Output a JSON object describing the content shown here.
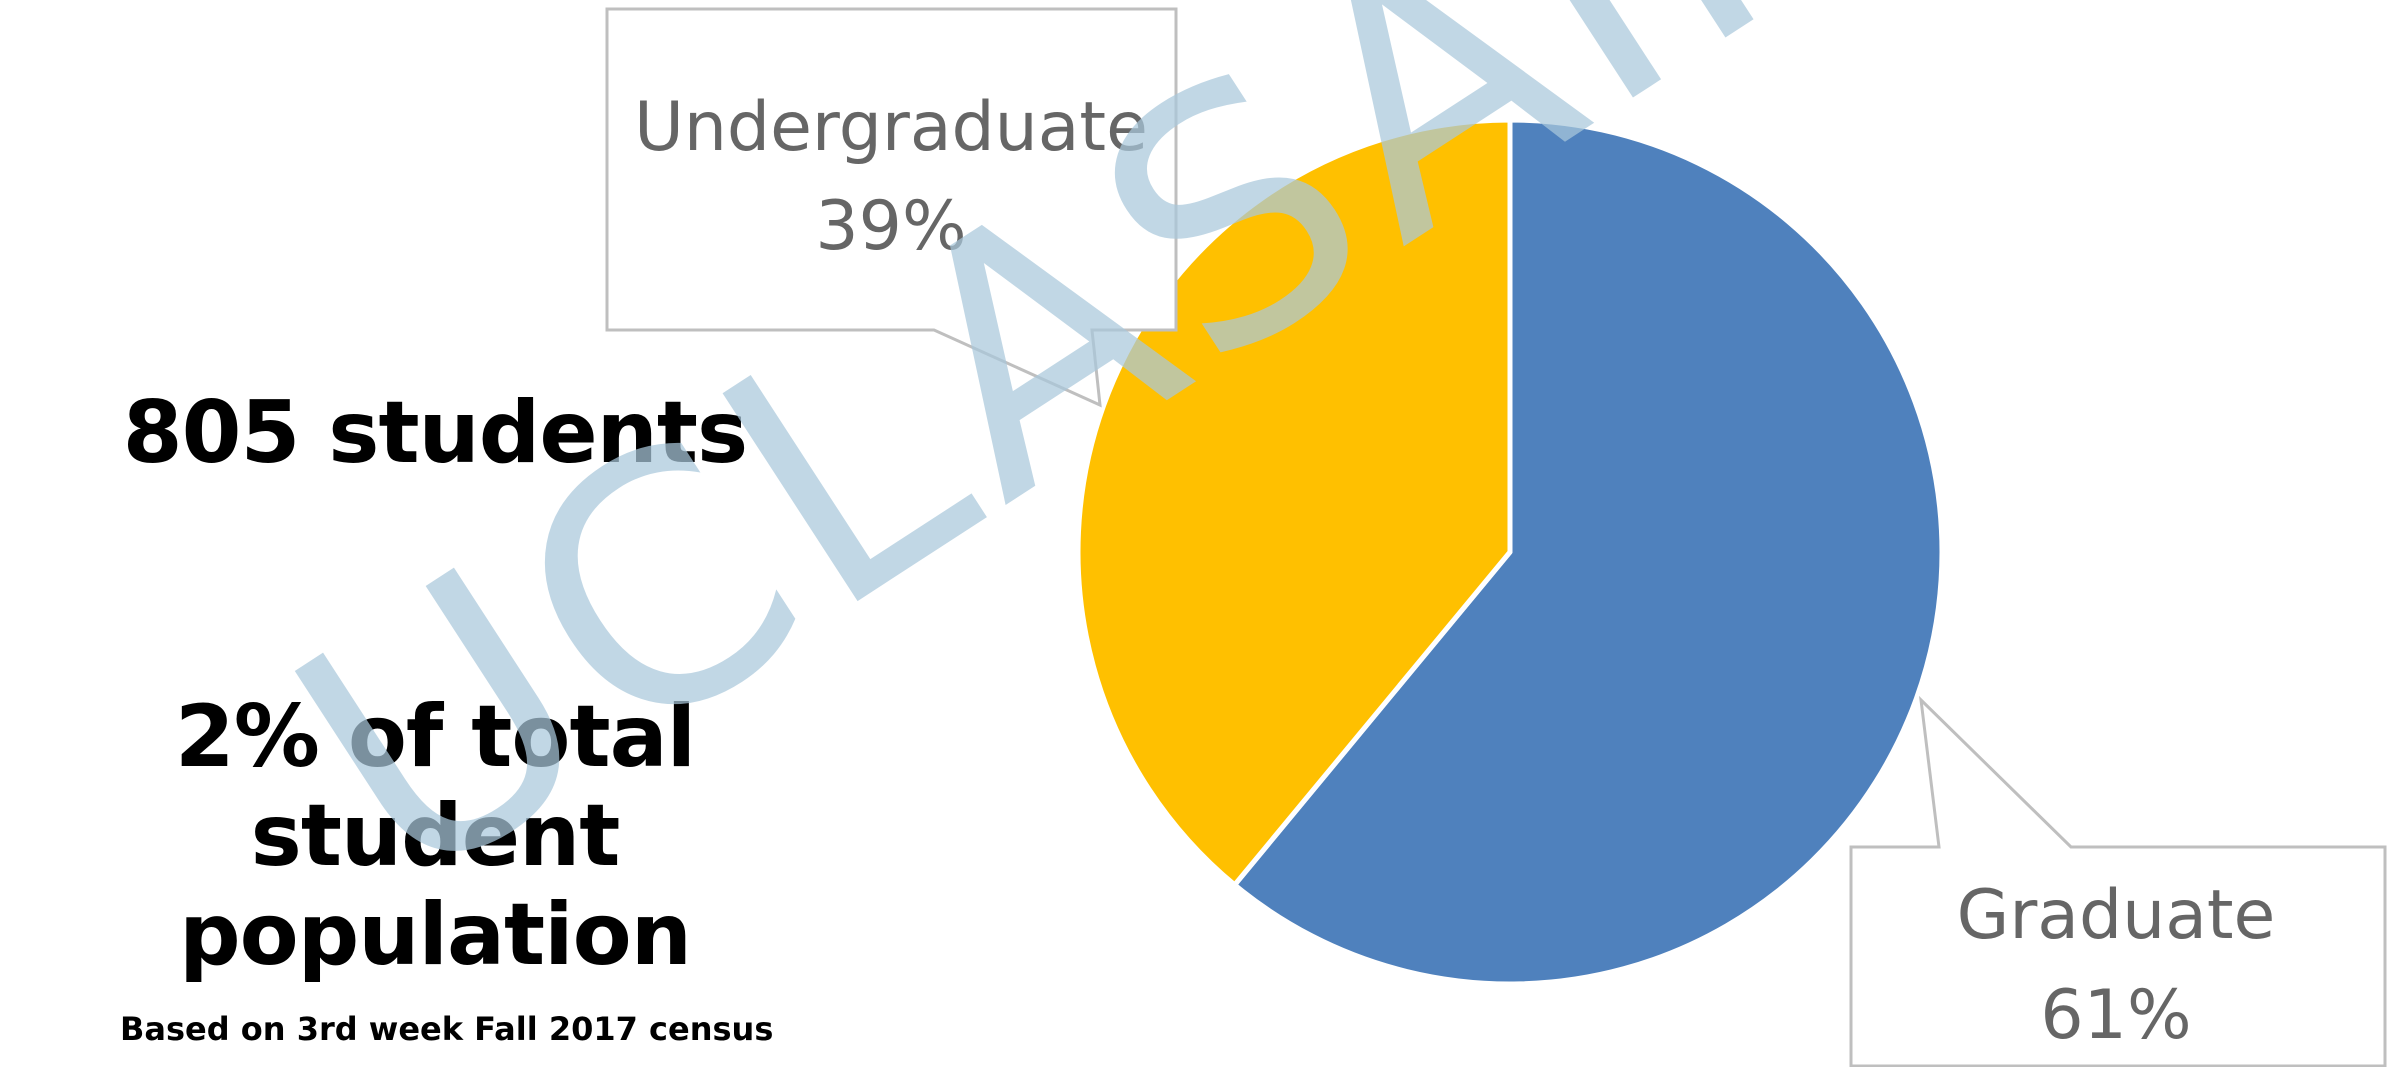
{
  "stats": {
    "count_text": "805 students",
    "share_line1": "2% of total student",
    "share_line2": "population"
  },
  "footnote": "Based on 3rd week Fall 2017 census",
  "watermark_text": "UCLASAIRO",
  "chart_data": {
    "type": "pie",
    "title": "",
    "slices": [
      {
        "label": "Graduate",
        "value": 61,
        "value_label": "61%",
        "color": "#4f81bd"
      },
      {
        "label": "Undergraduate",
        "value": 39,
        "value_label": "39%",
        "color": "#ffc000"
      }
    ],
    "start_angle_deg": 0,
    "direction": "clockwise",
    "data_labels": "callouts"
  }
}
